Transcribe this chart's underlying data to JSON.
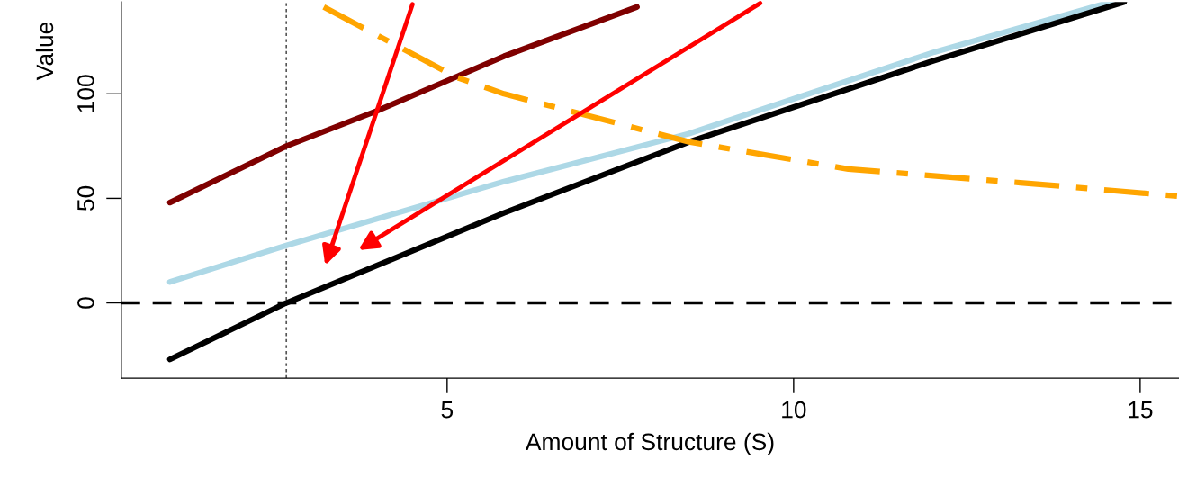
{
  "chart_data": {
    "type": "line",
    "xlabel": "Amount of Structure (S)",
    "ylabel": "Value",
    "xlim": [
      0.3,
      15.56
    ],
    "ylim": [
      -36,
      144
    ],
    "xticks": [
      5,
      10,
      15
    ],
    "yticks": [
      0,
      50,
      100
    ],
    "grid": false,
    "legend": false,
    "marker": "none",
    "series": [
      {
        "color": "#7f0000",
        "line_style": "solid",
        "x": [
          1,
          2.68,
          4,
          5.82,
          7.74
        ],
        "values": [
          48,
          75,
          92,
          118,
          141.6
        ]
      },
      {
        "color": "#add8e6",
        "line_style": "solid",
        "x": [
          1,
          2.68,
          5.82,
          8.49,
          12.03,
          14.58
        ],
        "values": [
          10,
          27.5,
          58,
          81,
          120,
          144
        ]
      },
      {
        "color": "#000000",
        "line_style": "solid",
        "x": [
          1,
          2.68,
          5.82,
          8.49,
          12.03,
          14.77
        ],
        "values": [
          -27,
          0,
          43,
          77,
          116,
          144
        ]
      },
      {
        "color": "#ffa500",
        "line_style": "dashdot",
        "x": [
          3.22,
          5.13,
          5.82,
          8.49,
          10.79,
          13.27,
          15.56
        ],
        "values": [
          141.6,
          108,
          100,
          77,
          64,
          57.5,
          51
        ]
      }
    ],
    "ref_lines": [
      {
        "axis": "y",
        "value": 0,
        "label": null,
        "color": "#000000",
        "line_style": "dashed"
      },
      {
        "axis": "x",
        "value": 2.68,
        "label": null,
        "color": "#555555",
        "line_style": "dotted"
      }
    ]
  }
}
